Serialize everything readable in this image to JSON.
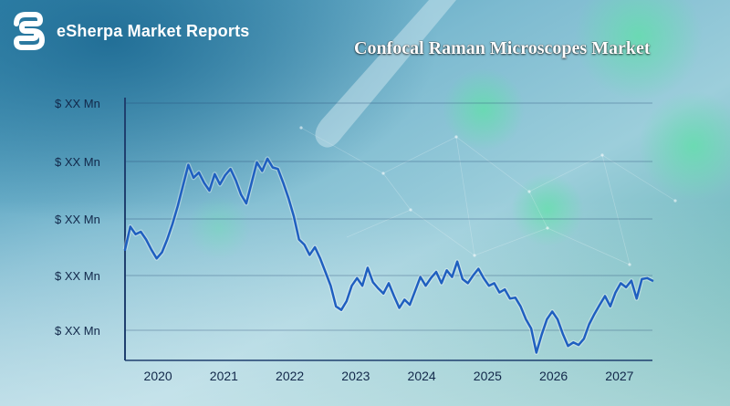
{
  "brand": {
    "name": "eSherpa Market Reports",
    "logo_icon": "esherpa-s-logo-icon"
  },
  "colors": {
    "line": "#1f5fc0",
    "axis": "#1f3f6e",
    "text": "#12284a"
  },
  "chart_data": {
    "type": "line",
    "title": "Confocal Raman Microscopes Market",
    "xlabel": "",
    "ylabel": "",
    "x_ticks": [
      "2020",
      "2021",
      "2022",
      "2023",
      "2024",
      "2025",
      "2026",
      "2027"
    ],
    "y_ticks": [
      "$ XX Mn",
      "$ XX Mn",
      "$ XX Mn",
      "$ XX Mn",
      "$ XX Mn"
    ],
    "y_axis_note": "placeholder values, no numeric scale shown",
    "xlim": [
      2019.5,
      2027.5
    ],
    "ylim": [
      0,
      5
    ],
    "grid": "horizontal",
    "legend": "none",
    "series": [
      {
        "values": [
          [
            2019.5,
            2.15
          ],
          [
            2019.58,
            2.6
          ],
          [
            2019.66,
            2.45
          ],
          [
            2019.74,
            2.5
          ],
          [
            2019.82,
            2.35
          ],
          [
            2019.9,
            2.15
          ],
          [
            2019.98,
            1.98
          ],
          [
            2020.06,
            2.1
          ],
          [
            2020.14,
            2.35
          ],
          [
            2020.22,
            2.65
          ],
          [
            2020.3,
            3.0
          ],
          [
            2020.38,
            3.4
          ],
          [
            2020.46,
            3.8
          ],
          [
            2020.54,
            3.55
          ],
          [
            2020.62,
            3.65
          ],
          [
            2020.7,
            3.45
          ],
          [
            2020.78,
            3.3
          ],
          [
            2020.86,
            3.62
          ],
          [
            2020.94,
            3.42
          ],
          [
            2021.02,
            3.6
          ],
          [
            2021.1,
            3.72
          ],
          [
            2021.18,
            3.5
          ],
          [
            2021.26,
            3.22
          ],
          [
            2021.34,
            3.05
          ],
          [
            2021.42,
            3.45
          ],
          [
            2021.5,
            3.85
          ],
          [
            2021.58,
            3.68
          ],
          [
            2021.66,
            3.92
          ],
          [
            2021.74,
            3.75
          ],
          [
            2021.82,
            3.72
          ],
          [
            2021.9,
            3.45
          ],
          [
            2021.98,
            3.15
          ],
          [
            2022.06,
            2.8
          ],
          [
            2022.14,
            2.35
          ],
          [
            2022.22,
            2.25
          ],
          [
            2022.3,
            2.05
          ],
          [
            2022.38,
            2.2
          ],
          [
            2022.46,
            1.98
          ],
          [
            2022.54,
            1.72
          ],
          [
            2022.62,
            1.45
          ],
          [
            2022.7,
            1.05
          ],
          [
            2022.78,
            0.98
          ],
          [
            2022.86,
            1.15
          ],
          [
            2022.94,
            1.45
          ],
          [
            2023.02,
            1.6
          ],
          [
            2023.1,
            1.45
          ],
          [
            2023.18,
            1.8
          ],
          [
            2023.26,
            1.52
          ],
          [
            2023.34,
            1.4
          ],
          [
            2023.42,
            1.3
          ],
          [
            2023.5,
            1.5
          ],
          [
            2023.58,
            1.25
          ],
          [
            2023.66,
            1.02
          ],
          [
            2023.74,
            1.18
          ],
          [
            2023.82,
            1.08
          ],
          [
            2023.9,
            1.35
          ],
          [
            2023.98,
            1.62
          ],
          [
            2024.06,
            1.45
          ],
          [
            2024.14,
            1.6
          ],
          [
            2024.22,
            1.72
          ],
          [
            2024.3,
            1.5
          ],
          [
            2024.38,
            1.75
          ],
          [
            2024.46,
            1.62
          ],
          [
            2024.54,
            1.92
          ],
          [
            2024.62,
            1.58
          ],
          [
            2024.7,
            1.5
          ],
          [
            2024.78,
            1.65
          ],
          [
            2024.86,
            1.78
          ],
          [
            2024.94,
            1.6
          ],
          [
            2025.02,
            1.45
          ],
          [
            2025.1,
            1.5
          ],
          [
            2025.18,
            1.32
          ],
          [
            2025.26,
            1.38
          ],
          [
            2025.34,
            1.2
          ],
          [
            2025.42,
            1.22
          ],
          [
            2025.5,
            1.05
          ],
          [
            2025.58,
            0.8
          ],
          [
            2025.66,
            0.62
          ],
          [
            2025.74,
            0.15
          ],
          [
            2025.82,
            0.5
          ],
          [
            2025.9,
            0.8
          ],
          [
            2025.98,
            0.95
          ],
          [
            2026.06,
            0.8
          ],
          [
            2026.14,
            0.52
          ],
          [
            2026.22,
            0.28
          ],
          [
            2026.3,
            0.35
          ],
          [
            2026.38,
            0.3
          ],
          [
            2026.46,
            0.42
          ],
          [
            2026.54,
            0.7
          ],
          [
            2026.62,
            0.9
          ],
          [
            2026.7,
            1.08
          ],
          [
            2026.78,
            1.25
          ],
          [
            2026.86,
            1.05
          ],
          [
            2026.94,
            1.32
          ],
          [
            2027.02,
            1.5
          ],
          [
            2027.1,
            1.42
          ],
          [
            2027.18,
            1.55
          ],
          [
            2027.26,
            1.2
          ],
          [
            2027.34,
            1.58
          ],
          [
            2027.42,
            1.6
          ],
          [
            2027.5,
            1.55
          ]
        ]
      }
    ]
  }
}
